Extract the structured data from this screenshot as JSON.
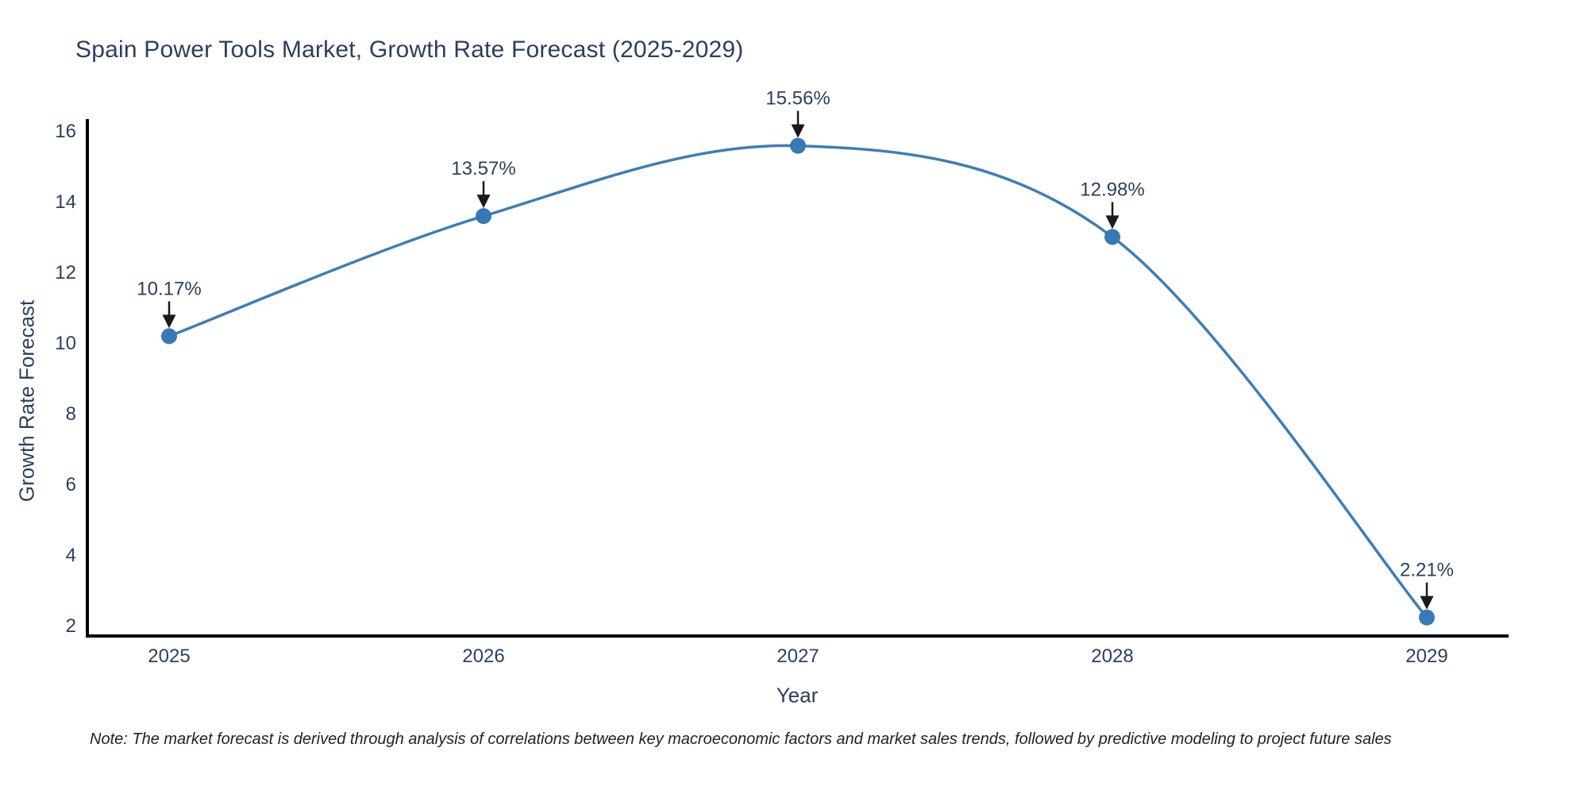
{
  "note": "Note: The market forecast is derived through analysis of correlations between key macroeconomic factors and market sales trends, followed by predictive modeling to project future sales",
  "colors": {
    "line": "#3d7db8",
    "marker": "#3878b4",
    "text": "#2a3f5f",
    "axis": "#000000",
    "arrow": "#1a1a1a",
    "background": "#ffffff"
  },
  "chart_data": {
    "type": "line",
    "title": "Spain Power Tools Market, Growth Rate Forecast (2025-2029)",
    "xlabel": "Year",
    "ylabel": "Growth Rate Forecast",
    "x": [
      2025,
      2026,
      2027,
      2028,
      2029
    ],
    "values": [
      10.17,
      13.57,
      15.56,
      12.98,
      2.21
    ],
    "labels": [
      "10.17%",
      "13.57%",
      "15.56%",
      "12.98%",
      "2.21%"
    ],
    "xticks": [
      "2025",
      "2026",
      "2027",
      "2028",
      "2029"
    ],
    "yticks": [
      2,
      4,
      6,
      8,
      10,
      12,
      14,
      16
    ],
    "ylim": [
      1.65,
      16.35
    ],
    "line_shape": "spline",
    "grid": false,
    "legend": "none",
    "marker_style": "circle",
    "annotation_arrows": "down"
  }
}
